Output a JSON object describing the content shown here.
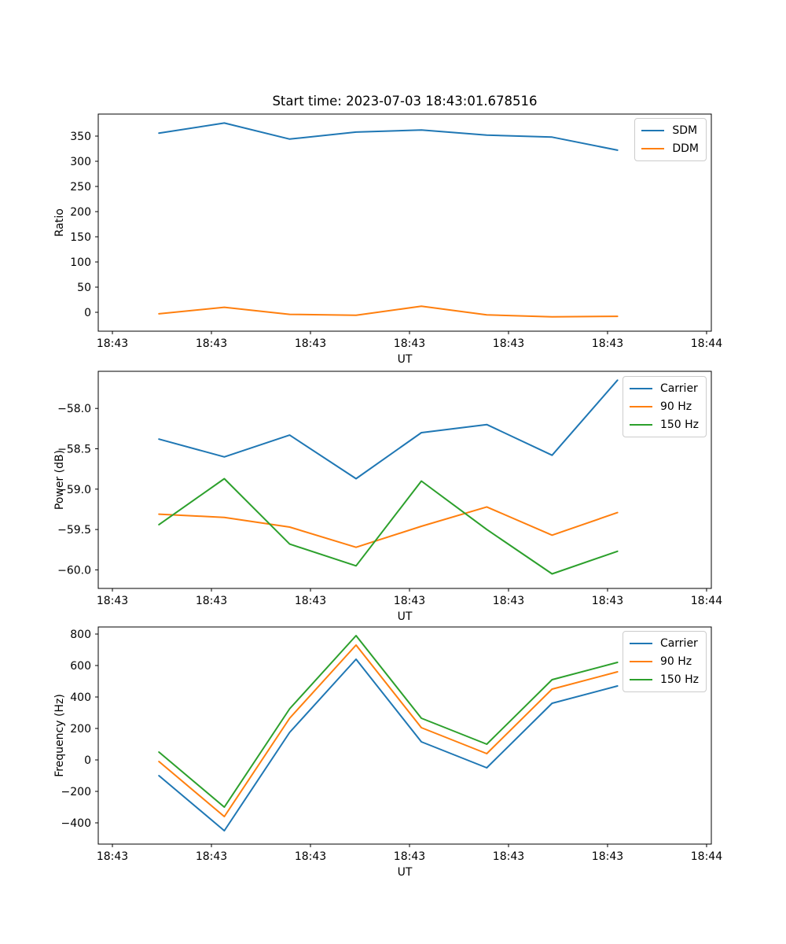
{
  "figure_title": "Start time: 2023-07-03 18:43:01.678516",
  "chart_data": [
    {
      "type": "line",
      "title": "Start time: 2023-07-03 18:43:01.678516",
      "xlabel": "UT",
      "ylabel": "Ratio",
      "grid": false,
      "legend_position": "upper right",
      "x_seconds": [
        4.7,
        11.3,
        17.9,
        24.6,
        31.2,
        37.8,
        44.4,
        51.0
      ],
      "xlim_seconds": [
        -1.43,
        60.48
      ],
      "xtick_seconds": [
        0,
        10,
        20,
        30,
        40,
        50,
        60
      ],
      "xtick_labels": [
        "18:43",
        "18:43",
        "18:43",
        "18:43",
        "18:43",
        "18:43",
        "18:44"
      ],
      "ylim": [
        -37.5,
        393.75
      ],
      "ytick_values": [
        0,
        50,
        100,
        150,
        200,
        250,
        300,
        350
      ],
      "ytick_labels": [
        "0",
        "50",
        "100",
        "150",
        "200",
        "250",
        "300",
        "350"
      ],
      "series": [
        {
          "name": "SDM",
          "color": "#1f77b4",
          "values": [
            356,
            376,
            344,
            358,
            362,
            352,
            348,
            322
          ]
        },
        {
          "name": "DDM",
          "color": "#ff7f0e",
          "values": [
            -3,
            10,
            -4,
            -6,
            12,
            -5,
            -9,
            -8
          ]
        }
      ]
    },
    {
      "type": "line",
      "title": "",
      "xlabel": "UT",
      "ylabel": "Power (dB)",
      "grid": false,
      "legend_position": "upper right",
      "x_seconds": [
        4.7,
        11.3,
        17.9,
        24.6,
        31.2,
        37.8,
        44.4,
        51.0
      ],
      "xlim_seconds": [
        -1.43,
        60.48
      ],
      "xtick_seconds": [
        0,
        10,
        20,
        30,
        40,
        50,
        60
      ],
      "xtick_labels": [
        "18:43",
        "18:43",
        "18:43",
        "18:43",
        "18:43",
        "18:43",
        "18:44"
      ],
      "ylim": [
        -60.23,
        -57.54
      ],
      "ytick_values": [
        -58.0,
        -58.5,
        -59.0,
        -59.5,
        -60.0
      ],
      "ytick_labels": [
        "−58.0",
        "−58.5",
        "−59.0",
        "−59.5",
        "−60.0"
      ],
      "series": [
        {
          "name": "Carrier",
          "color": "#1f77b4",
          "values": [
            -58.38,
            -58.6,
            -58.33,
            -58.87,
            -58.3,
            -58.2,
            -58.58,
            -57.65
          ]
        },
        {
          "name": "90 Hz",
          "color": "#ff7f0e",
          "values": [
            -59.31,
            -59.35,
            -59.47,
            -59.72,
            -59.46,
            -59.22,
            -59.57,
            -59.29
          ]
        },
        {
          "name": "150 Hz",
          "color": "#2ca02c",
          "values": [
            -59.44,
            -58.87,
            -59.68,
            -59.95,
            -58.9,
            -59.5,
            -60.05,
            -59.77
          ]
        }
      ]
    },
    {
      "type": "line",
      "title": "",
      "xlabel": "UT",
      "ylabel": "Frequency (Hz)",
      "grid": false,
      "legend_position": "upper right",
      "x_seconds": [
        4.7,
        11.3,
        17.9,
        24.6,
        31.2,
        37.8,
        44.4,
        51.0
      ],
      "xlim_seconds": [
        -1.43,
        60.48
      ],
      "xtick_seconds": [
        0,
        10,
        20,
        30,
        40,
        50,
        60
      ],
      "xtick_labels": [
        "18:43",
        "18:43",
        "18:43",
        "18:43",
        "18:43",
        "18:43",
        "18:44"
      ],
      "ylim": [
        -535,
        845
      ],
      "ytick_values": [
        -400,
        -200,
        0,
        200,
        400,
        600,
        800
      ],
      "ytick_labels": [
        "−400",
        "−200",
        "0",
        "200",
        "400",
        "600",
        "800"
      ],
      "series": [
        {
          "name": "Carrier",
          "color": "#1f77b4",
          "values": [
            -100,
            -450,
            175,
            640,
            115,
            -50,
            360,
            470
          ]
        },
        {
          "name": "90 Hz",
          "color": "#ff7f0e",
          "values": [
            -10,
            -360,
            265,
            730,
            205,
            40,
            450,
            560
          ]
        },
        {
          "name": "150 Hz",
          "color": "#2ca02c",
          "values": [
            50,
            -300,
            325,
            790,
            265,
            100,
            510,
            620
          ]
        }
      ]
    }
  ]
}
